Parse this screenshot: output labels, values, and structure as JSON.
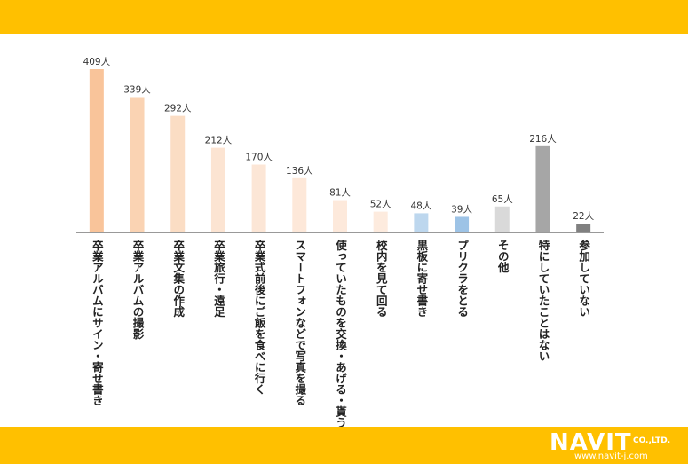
{
  "chart_data": {
    "type": "bar",
    "title": "",
    "xlabel": "",
    "ylabel": "",
    "unit": "人",
    "categories": [
      "卒業アルバムにサイン・寄せ書き",
      "卒業アルバムの撮影",
      "卒業文集の作成",
      "卒業旅行・遠足",
      "卒業式前後にご飯を食べに行く",
      "スマートフォンなどで写真を撮る",
      "使っていたものを交換・あげる・貰う",
      "校内を見て回る",
      "黒板に寄せ書き",
      "プリクラをとる",
      "その他",
      "特にしていたことはない",
      "参加していない"
    ],
    "values": [
      409,
      339,
      292,
      212,
      170,
      136,
      81,
      52,
      48,
      39,
      65,
      216,
      22
    ],
    "value_labels": [
      "409人",
      "339人",
      "292人",
      "212人",
      "170人",
      "136人",
      "81人",
      "52人",
      "48人",
      "39人",
      "65人",
      "216人",
      "22人"
    ],
    "colors": [
      "#F9C49A",
      "#FAD3B3",
      "#FBDDC4",
      "#FCE4D2",
      "#FCE6D6",
      "#FDE8D9",
      "#FDE9DB",
      "#FDEBDE",
      "#BDD7EE",
      "#9DC3E6",
      "#D9D9D9",
      "#A6A6A6",
      "#808080"
    ],
    "ylim": [
      0,
      409
    ],
    "grid": false,
    "legend": "none"
  },
  "footer": {
    "brand": "NAVIT",
    "company_suffix": "CO.,LTD.",
    "url": "www.navit-j.com"
  }
}
